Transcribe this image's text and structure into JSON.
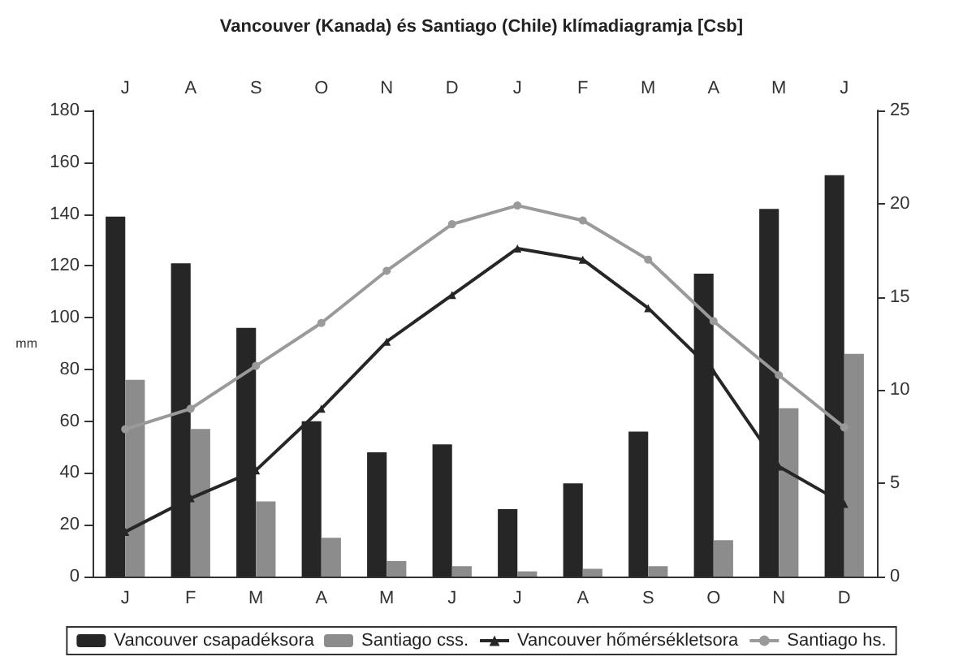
{
  "chart_data": {
    "type": "bar",
    "title": "Vancouver (Kanada) és Santiago (Chile) klímadiagramja [Csb]",
    "categories": [
      "J",
      "F",
      "M",
      "A",
      "M",
      "J",
      "J",
      "A",
      "S",
      "O",
      "N",
      "D"
    ],
    "annotations": [
      "J",
      "A",
      "S",
      "O",
      "N",
      "D",
      "J",
      "F",
      "M",
      "A",
      "M",
      "J"
    ],
    "ylabel": "mm",
    "series": [
      {
        "name": "Vancouver csapadéksora",
        "color": "#262626",
        "values": [
          139,
          121,
          96,
          60,
          48,
          51,
          26,
          36,
          56,
          117,
          142,
          155
        ]
      },
      {
        "name": "Santiago css.",
        "color": "#8c8c8c",
        "values": [
          76,
          57,
          29,
          15,
          6,
          4,
          2,
          3,
          4,
          14,
          65,
          86
        ]
      },
      {
        "name": "Vancouver hőmérsékletsora",
        "type": "line",
        "axis": "y2",
        "marker": "triangle",
        "color": "#262626",
        "values": [
          2.4,
          4.2,
          5.7,
          9.0,
          12.6,
          15.1,
          17.6,
          17.0,
          14.4,
          11.0,
          5.9,
          3.9
        ]
      },
      {
        "name": "Santiago hs.",
        "type": "line",
        "axis": "y2",
        "marker": "circle",
        "color": "#9a9a9a",
        "values": [
          7.9,
          9.0,
          11.3,
          13.6,
          16.4,
          18.9,
          19.9,
          19.1,
          17.0,
          13.7,
          10.8,
          8.0
        ]
      }
    ],
    "ylim": [
      0,
      180
    ],
    "yticks": [
      0,
      20,
      40,
      60,
      80,
      100,
      120,
      140,
      160,
      180
    ],
    "y2lim": [
      0,
      25
    ],
    "y2ticks": [
      0,
      5,
      10,
      15,
      20,
      25
    ],
    "grid": false,
    "legend": "bottom"
  }
}
